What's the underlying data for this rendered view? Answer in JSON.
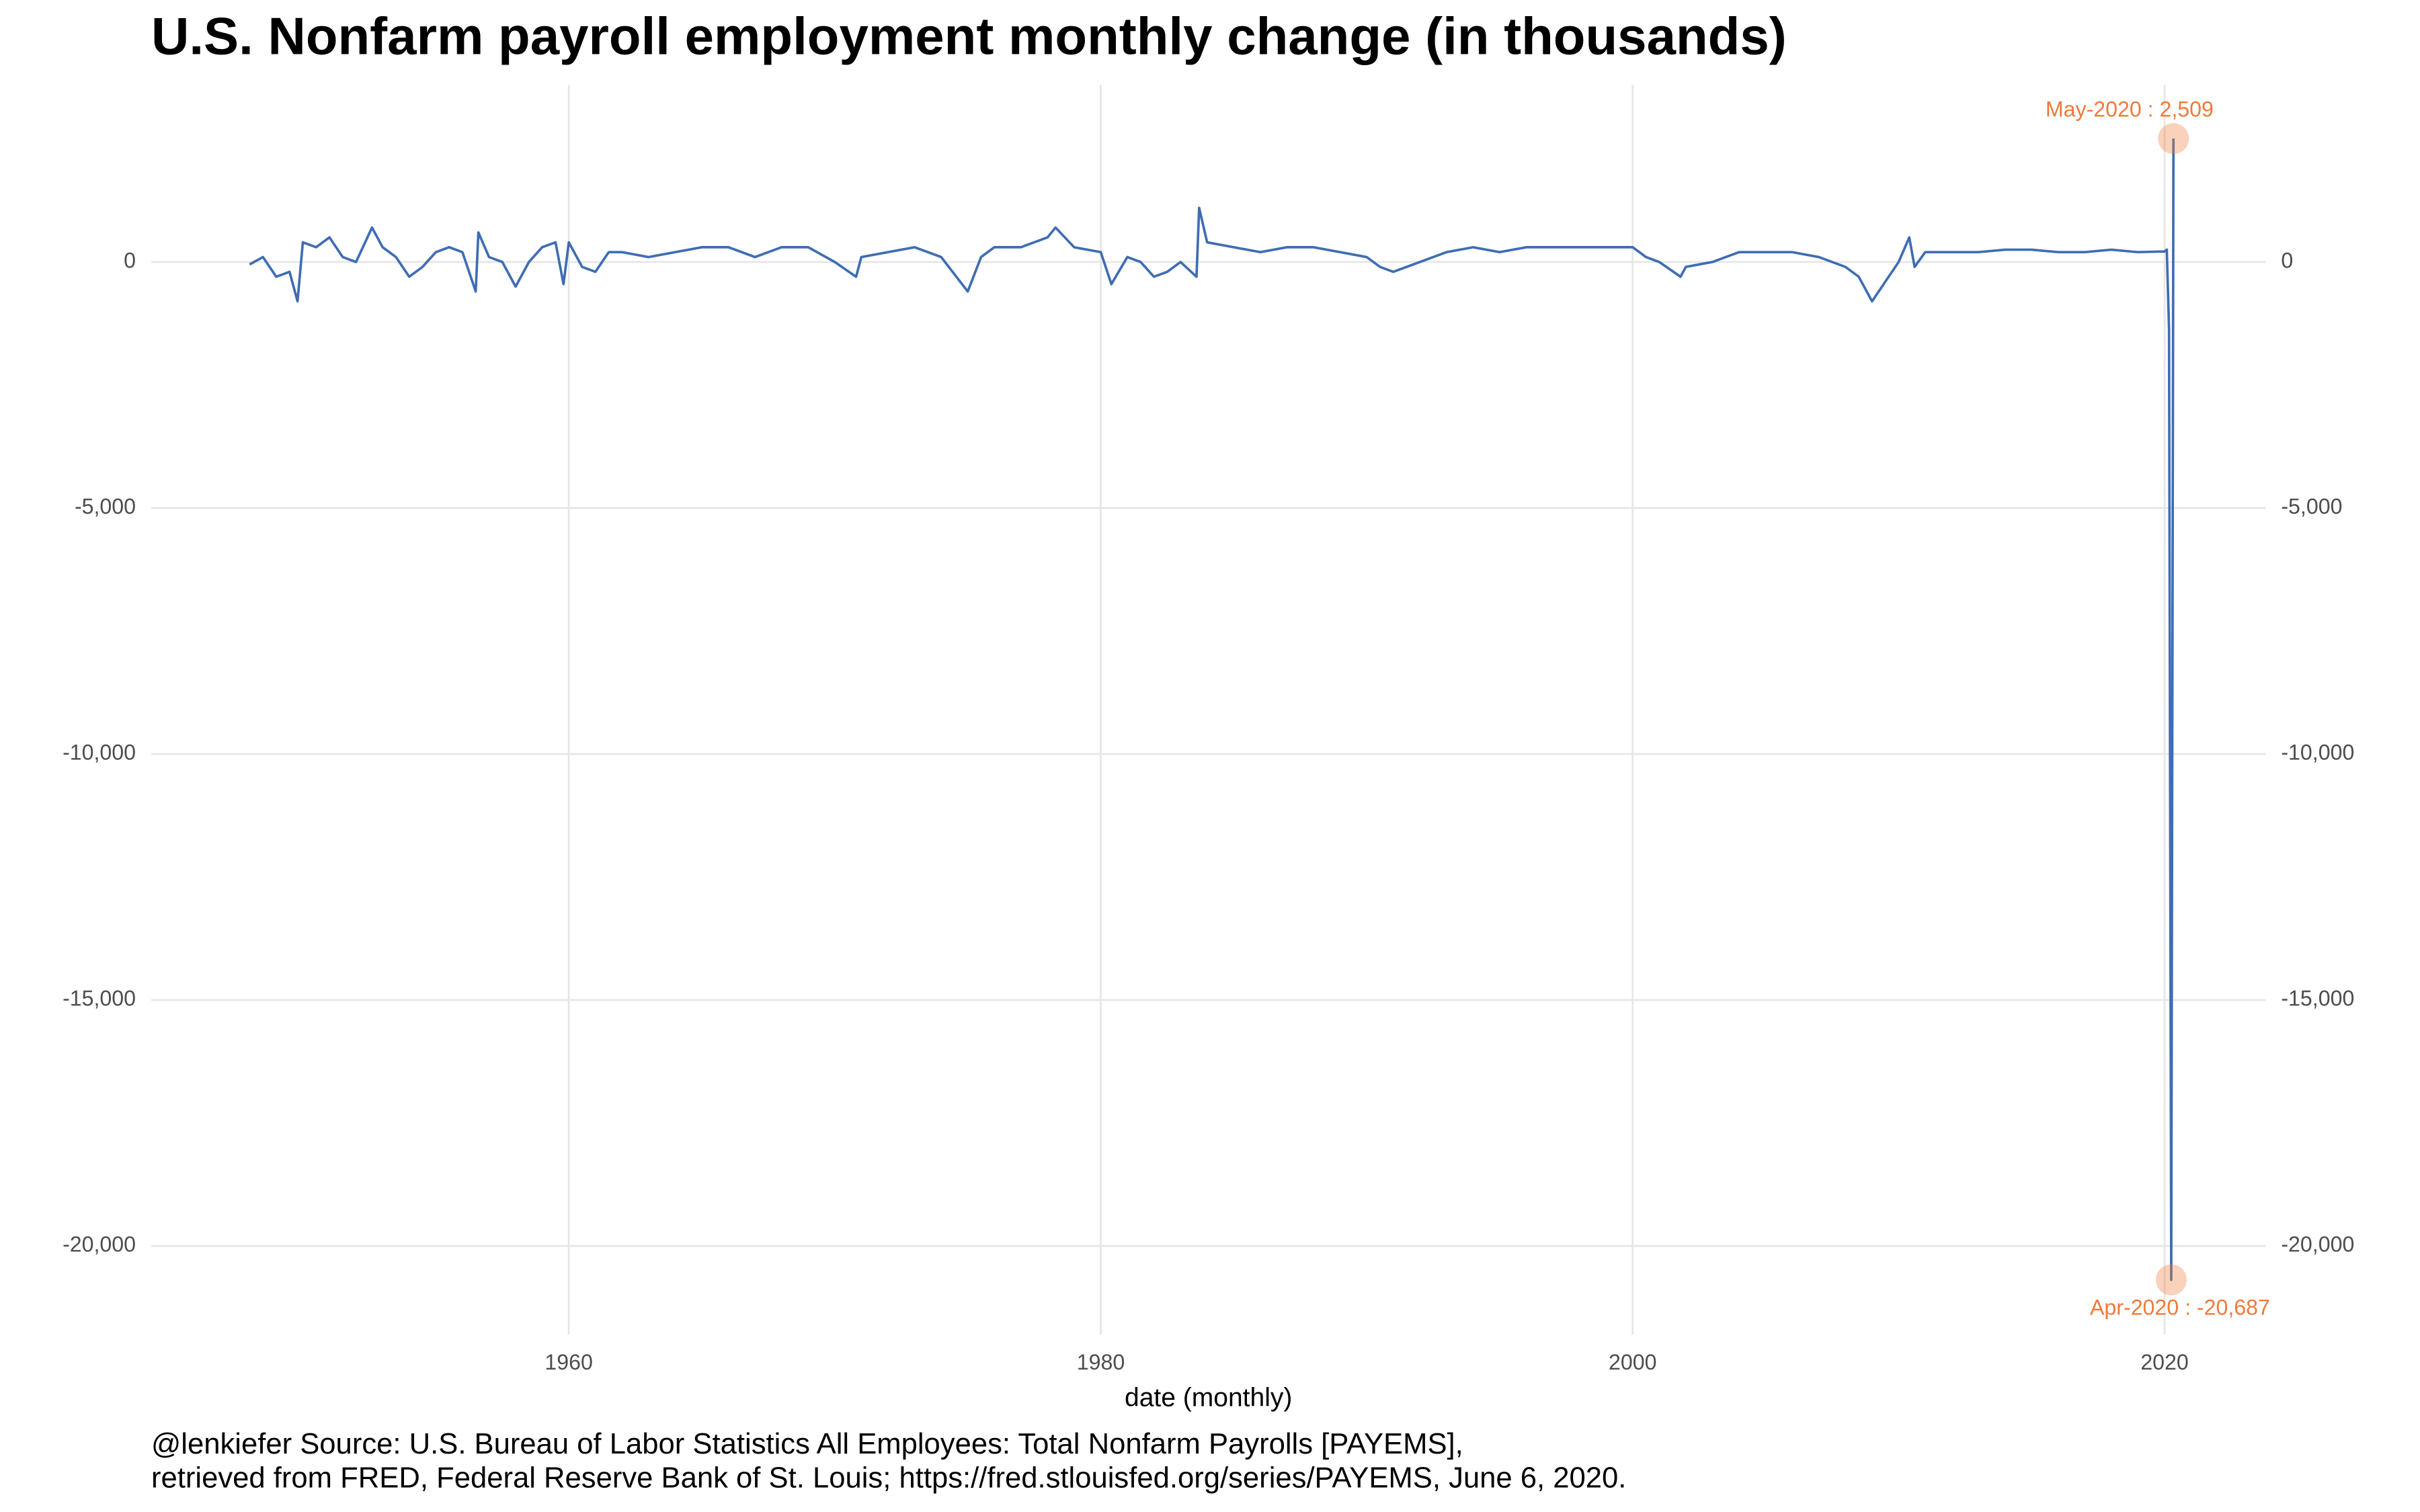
{
  "chart_data": {
    "type": "line",
    "title": "U.S. Nonfarm payroll employment monthly change (in thousands)",
    "x_label": "date (monthly)",
    "caption": [
      "@lenkiefer Source: U.S. Bureau of Labor Statistics All Employees: Total Nonfarm Payrolls [PAYEMS],",
      "retrieved from FRED, Federal Reserve Bank of St. Louis; https://fred.stlouisfed.org/series/PAYEMS, June 6, 2020."
    ],
    "x": [
      1948.0,
      1948.5,
      1949.0,
      1949.5,
      1949.8,
      1950.0,
      1950.5,
      1951.0,
      1951.5,
      1952.0,
      1952.6,
      1953.0,
      1953.5,
      1954.0,
      1954.5,
      1955.0,
      1955.5,
      1956.0,
      1956.5,
      1956.6,
      1957.0,
      1957.5,
      1958.0,
      1958.5,
      1959.0,
      1959.5,
      1959.8,
      1960.0,
      1960.5,
      1961.0,
      1961.5,
      1962.0,
      1963.0,
      1964.0,
      1965.0,
      1966.0,
      1967.0,
      1968.0,
      1969.0,
      1970.0,
      1970.8,
      1971.0,
      1972.0,
      1973.0,
      1974.0,
      1975.0,
      1975.5,
      1976.0,
      1977.0,
      1978.0,
      1978.3,
      1979.0,
      1980.0,
      1980.4,
      1981.0,
      1981.5,
      1982.0,
      1982.5,
      1983.0,
      1983.6,
      1983.7,
      1984.0,
      1985.0,
      1986.0,
      1987.0,
      1988.0,
      1989.0,
      1990.0,
      1990.5,
      1991.0,
      1992.0,
      1993.0,
      1994.0,
      1995.0,
      1996.0,
      1997.0,
      1998.0,
      1999.0,
      2000.0,
      2000.5,
      2001.0,
      2001.8,
      2002.0,
      2003.0,
      2004.0,
      2005.0,
      2006.0,
      2007.0,
      2008.0,
      2008.5,
      2009.0,
      2009.5,
      2010.0,
      2010.4,
      2010.6,
      2011.0,
      2012.0,
      2013.0,
      2014.0,
      2015.0,
      2016.0,
      2017.0,
      2018.0,
      2019.0,
      2020.0,
      2020.083,
      2020.167,
      2020.25,
      2020.333
    ],
    "series": [
      {
        "name": "PAYEMS",
        "color": "#3f6db3",
        "values": [
          -50,
          100,
          -300,
          -200,
          -800,
          400,
          300,
          500,
          100,
          0,
          700,
          300,
          100,
          -300,
          -100,
          200,
          300,
          200,
          -600,
          600,
          100,
          0,
          -500,
          0,
          300,
          400,
          -450,
          400,
          -100,
          -200,
          200,
          200,
          100,
          200,
          300,
          300,
          100,
          300,
          300,
          0,
          -300,
          100,
          200,
          300,
          100,
          -600,
          100,
          300,
          300,
          500,
          700,
          300,
          200,
          -450,
          100,
          0,
          -300,
          -200,
          0,
          -300,
          1100,
          400,
          300,
          200,
          300,
          300,
          200,
          100,
          -100,
          -200,
          0,
          200,
          300,
          200,
          300,
          300,
          300,
          300,
          300,
          100,
          0,
          -300,
          -100,
          0,
          200,
          200,
          200,
          100,
          -100,
          -300,
          -800,
          -400,
          0,
          500,
          -100,
          200,
          200,
          200,
          250,
          250,
          200,
          200,
          250,
          200,
          214,
          251,
          -1373,
          -20687,
          2509
        ],
        "value_labels": [
          null,
          null,
          null,
          null,
          null,
          null,
          null,
          null,
          null,
          null,
          null,
          null,
          null,
          null,
          null,
          null,
          null,
          null,
          null,
          null,
          null,
          null,
          null,
          null,
          null,
          null,
          null,
          null,
          null,
          null,
          null,
          null,
          null,
          null,
          null,
          null,
          null,
          null,
          null,
          null,
          null,
          null,
          null,
          null,
          null,
          null,
          null,
          null,
          null,
          null,
          null,
          null,
          null,
          null,
          null,
          null,
          null,
          null,
          null,
          null,
          null,
          null,
          null,
          null,
          null,
          null,
          null,
          null,
          null,
          null,
          null,
          null,
          null,
          null,
          null,
          null,
          null,
          null,
          null,
          null,
          null,
          null,
          null,
          null,
          null,
          null,
          null,
          null,
          null,
          null,
          null,
          null,
          null,
          null,
          null,
          null,
          null,
          null,
          null,
          null,
          null,
          null,
          null,
          null,
          null,
          null,
          null,
          "Apr-2020 : -20,687",
          "May-2020 : 2,509"
        ]
      }
    ],
    "highlight_color": "#f07a3a",
    "xlim": [
      1944.3,
      2023.8
    ],
    "xticks": [
      1960,
      1980,
      2000,
      2020
    ],
    "ylim": [
      -21800,
      3600
    ],
    "yticks": [
      {
        "value": -20000,
        "label": "-20,000"
      },
      {
        "value": -15000,
        "label": "-15,000"
      },
      {
        "value": -10000,
        "label": "-10,000"
      },
      {
        "value": -5000,
        "label": "-5,000"
      },
      0
    ],
    "grid": true,
    "right_axis": true
  }
}
